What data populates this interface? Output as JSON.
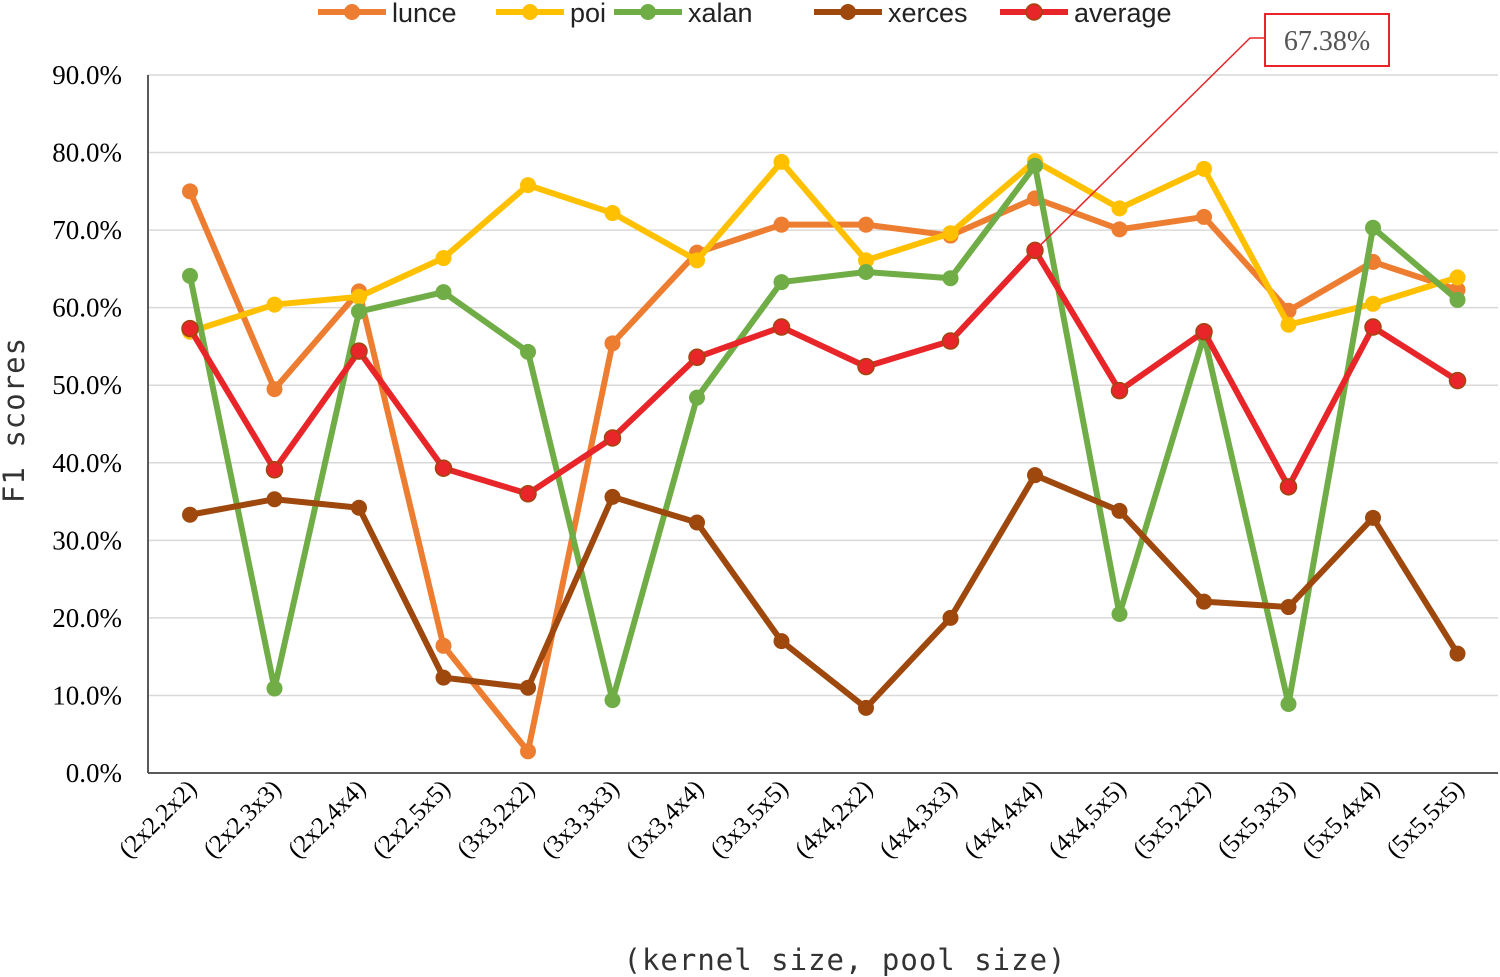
{
  "chart_data": {
    "type": "line",
    "title": "",
    "xlabel": "(kernel size, pool size)",
    "ylabel": "F1 scores",
    "ylim": [
      0,
      90
    ],
    "ytick_values": [
      0,
      10,
      20,
      30,
      40,
      50,
      60,
      70,
      80,
      90
    ],
    "ytick_labels": [
      "0.0%",
      "10.0%",
      "20.0%",
      "30.0%",
      "40.0%",
      "50.0%",
      "60.0%",
      "70.0%",
      "80.0%",
      "90.0%"
    ],
    "grid": true,
    "legend_position": "top",
    "categories": [
      "(2x2,2x2)",
      "(2x2,3x3)",
      "(2x2,4x4)",
      "(2x2,5x5)",
      "(3x3,2x2)",
      "(3x3,3x3)",
      "(3x3,4x4)",
      "(3x3,5x5)",
      "(4x4,2x2)",
      "(4x4,3x3)",
      "(4x4,4x4)",
      "(4x4,5x5)",
      "(5x5,2x2)",
      "(5x5,3x3)",
      "(5x5,4x4)",
      "(5x5,5x5)"
    ],
    "series": [
      {
        "name": "lunce",
        "color": "#ED7D31",
        "values": [
          75.0,
          49.5,
          62.1,
          16.4,
          2.8,
          55.4,
          67.1,
          70.7,
          70.7,
          69.3,
          74.1,
          70.1,
          71.7,
          59.6,
          65.9,
          62.3
        ]
      },
      {
        "name": "poi",
        "color": "#FFC000",
        "values": [
          56.9,
          60.4,
          61.4,
          66.4,
          75.8,
          72.2,
          66.1,
          78.8,
          66.1,
          69.6,
          78.9,
          72.8,
          77.9,
          57.8,
          60.5,
          63.9
        ]
      },
      {
        "name": "xalan",
        "color": "#70AD47",
        "values": [
          64.1,
          10.9,
          59.5,
          62.0,
          54.3,
          9.4,
          48.4,
          63.3,
          64.6,
          63.8,
          78.3,
          20.5,
          56.4,
          8.9,
          70.3,
          61.0
        ]
      },
      {
        "name": "xerces",
        "color": "#9E480E",
        "values": [
          33.3,
          35.3,
          34.2,
          12.3,
          11.0,
          35.6,
          32.3,
          17.0,
          8.4,
          20.0,
          38.4,
          33.8,
          22.1,
          21.4,
          32.9,
          15.4
        ]
      },
      {
        "name": "average",
        "color": "#E8262A",
        "values": [
          57.3,
          39.1,
          54.4,
          39.3,
          36.0,
          43.2,
          53.6,
          57.5,
          52.4,
          55.7,
          67.38,
          49.3,
          56.9,
          36.9,
          57.5,
          50.6
        ]
      }
    ],
    "annotations": [
      {
        "text": "67.38%",
        "series": "average",
        "category": "(4x4,4x4)",
        "border_color": "#E8262A"
      }
    ]
  }
}
